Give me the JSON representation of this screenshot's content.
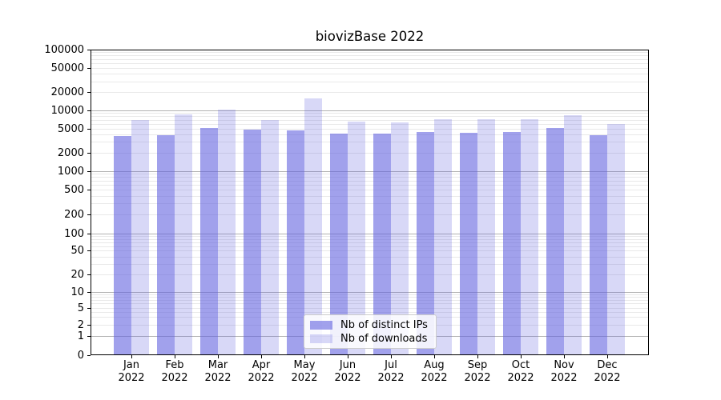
{
  "figure": {
    "title": "biovizBase 2022"
  },
  "chart_data": {
    "type": "bar",
    "title": "biovizBase 2022",
    "yscale": "symlog",
    "ylim": [
      0,
      100000
    ],
    "grid": "both",
    "legend_position": "lower center",
    "months": [
      "Jan",
      "Feb",
      "Mar",
      "Apr",
      "May",
      "Jun",
      "Jul",
      "Aug",
      "Sep",
      "Oct",
      "Nov",
      "Dec"
    ],
    "year": "2022",
    "categories": [
      "Jan 2022",
      "Feb 2022",
      "Mar 2022",
      "Apr 2022",
      "May 2022",
      "Jun 2022",
      "Jul 2022",
      "Aug 2022",
      "Sep 2022",
      "Oct 2022",
      "Nov 2022",
      "Dec 2022"
    ],
    "yticks": [
      0,
      1,
      2,
      5,
      10,
      20,
      50,
      100,
      200,
      500,
      1000,
      2000,
      5000,
      10000,
      20000,
      50000,
      100000
    ],
    "series": [
      {
        "name": "Nb of distinct IPs",
        "color": "rgba(98,98,224,0.6)",
        "values": [
          3850,
          3900,
          5100,
          4800,
          4650,
          4200,
          4150,
          4400,
          4350,
          4400,
          5100,
          3900
        ]
      },
      {
        "name": "Nb of downloads",
        "color": "rgba(98,98,224,0.25)",
        "values": [
          6900,
          8700,
          10300,
          7100,
          15800,
          6600,
          6400,
          7200,
          7300,
          7200,
          8400,
          6100
        ]
      }
    ],
    "colors": {
      "grid_major": "#b2b2b2",
      "grid_minor": "#e9e9e9",
      "axis": "#000000",
      "background": "#ffffff"
    }
  }
}
